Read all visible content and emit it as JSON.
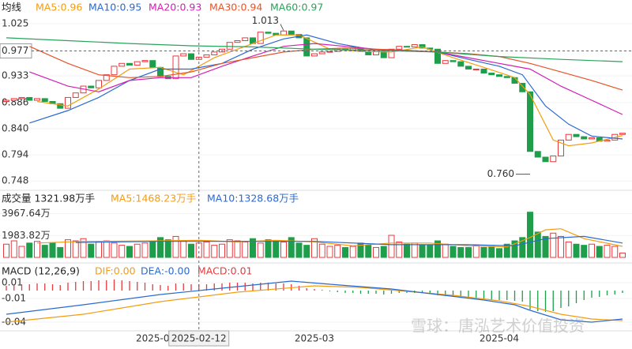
{
  "chart_data": [
    {
      "type": "candlestick",
      "title": "均线",
      "open": [
        0.888,
        0.89,
        0.893,
        0.895,
        0.89,
        0.893,
        0.888,
        0.884,
        0.876,
        0.895,
        0.903,
        0.915,
        0.912,
        0.925,
        0.935,
        0.95,
        0.955,
        0.952,
        0.958,
        0.96,
        0.948,
        0.932,
        0.928,
        0.968,
        0.972,
        0.962,
        0.966,
        0.97,
        0.975,
        0.98,
        0.992,
        0.995,
        1.0,
        0.99,
        1.01,
        1.008,
        1.005,
        1.012,
        1.006,
        1.0,
        0.968,
        0.972,
        0.975,
        0.976,
        0.98,
        0.978,
        0.982,
        0.976,
        0.97,
        0.978,
        0.965,
        0.98,
        0.985,
        0.984,
        0.988,
        0.982,
        0.98,
        0.955,
        0.96,
        0.958,
        0.95,
        0.945,
        0.945,
        0.938,
        0.935,
        0.932,
        0.93,
        0.92,
        0.905,
        0.8,
        0.79,
        0.782,
        0.792,
        0.82,
        0.83,
        0.826,
        0.822,
        0.824,
        0.818,
        0.82,
        0.83
      ],
      "close": [
        0.89,
        0.893,
        0.895,
        0.89,
        0.893,
        0.888,
        0.884,
        0.876,
        0.895,
        0.903,
        0.915,
        0.912,
        0.925,
        0.935,
        0.95,
        0.955,
        0.952,
        0.958,
        0.96,
        0.948,
        0.932,
        0.928,
        0.968,
        0.972,
        0.962,
        0.966,
        0.97,
        0.975,
        0.98,
        0.992,
        0.995,
        1.0,
        0.99,
        1.01,
        1.008,
        1.005,
        1.012,
        1.006,
        1.0,
        0.968,
        0.972,
        0.975,
        0.976,
        0.98,
        0.978,
        0.982,
        0.976,
        0.97,
        0.978,
        0.965,
        0.98,
        0.985,
        0.984,
        0.988,
        0.982,
        0.98,
        0.955,
        0.96,
        0.958,
        0.95,
        0.945,
        0.945,
        0.938,
        0.935,
        0.932,
        0.93,
        0.92,
        0.905,
        0.8,
        0.79,
        0.782,
        0.792,
        0.82,
        0.83,
        0.826,
        0.822,
        0.824,
        0.818,
        0.82,
        0.83,
        0.832
      ],
      "up_color": "#e8393c",
      "down_color": "#1e9e4a",
      "ylim": [
        0.733,
        1.036
      ],
      "yticks": [
        1.025,
        0.977,
        0.933,
        0.886,
        {
          "value": 0.84,
          "label": "0.840"
        },
        0.794,
        0.748
      ],
      "grid": true,
      "crosshair": {
        "x": 25,
        "y": 0.977
      },
      "lines": [
        {
          "name": "MA5:0.96",
          "color": "#f39c12",
          "x": [
            4,
            8,
            12,
            16,
            20,
            23,
            27,
            31,
            35,
            38,
            42,
            46,
            50,
            54,
            58,
            62,
            66,
            68,
            71,
            73,
            76,
            80
          ],
          "values": [
            0.888,
            0.88,
            0.91,
            0.945,
            0.948,
            0.935,
            0.965,
            0.985,
            1.005,
            1.005,
            0.98,
            0.976,
            0.975,
            0.984,
            0.965,
            0.948,
            0.93,
            0.9,
            0.82,
            0.81,
            0.815,
            0.828
          ]
        },
        {
          "name": "MA10:0.95",
          "color": "#2a6ad0",
          "x": [
            3,
            8,
            12,
            16,
            20,
            24,
            28,
            32,
            36,
            39,
            43,
            48,
            52,
            56,
            60,
            64,
            67,
            70,
            73,
            76,
            80
          ],
          "values": [
            0.85,
            0.872,
            0.895,
            0.925,
            0.945,
            0.945,
            0.955,
            0.98,
            0.998,
            1.005,
            0.99,
            0.978,
            0.977,
            0.975,
            0.962,
            0.95,
            0.935,
            0.88,
            0.848,
            0.827,
            0.822
          ]
        },
        {
          "name": "MA20:0.93",
          "color": "#d21fb4",
          "x": [
            3,
            8,
            12,
            16,
            20,
            24,
            28,
            32,
            36,
            40,
            44,
            48,
            52,
            56,
            60,
            64,
            68,
            72,
            76,
            80
          ],
          "values": [
            0.94,
            0.915,
            0.905,
            0.925,
            0.93,
            0.93,
            0.95,
            0.968,
            0.985,
            0.99,
            0.985,
            0.98,
            0.978,
            0.975,
            0.965,
            0.955,
            0.945,
            0.915,
            0.89,
            0.865
          ]
        },
        {
          "name": "MA30:0.94",
          "color": "#e6542a",
          "x": [
            3,
            8,
            12,
            16,
            20,
            24,
            28,
            32,
            36,
            40,
            44,
            48,
            52,
            56,
            60,
            64,
            68,
            72,
            76,
            80
          ],
          "values": [
            0.985,
            0.955,
            0.935,
            0.93,
            0.932,
            0.94,
            0.955,
            0.965,
            0.975,
            0.98,
            0.982,
            0.98,
            0.978,
            0.975,
            0.972,
            0.967,
            0.955,
            0.94,
            0.925,
            0.908
          ]
        },
        {
          "name": "MA60:0.97",
          "color": "#2aa35a",
          "x": [
            0,
            8,
            16,
            24,
            32,
            40,
            48,
            56,
            64,
            72,
            80
          ],
          "values": [
            1.0,
            0.995,
            0.99,
            0.986,
            0.984,
            0.98,
            0.978,
            0.975,
            0.967,
            0.962,
            0.958
          ]
        }
      ],
      "annotations": [
        {
          "text": "1.013",
          "x": 36,
          "y": 1.013
        },
        {
          "text": "0.760",
          "x": 68,
          "y": 0.76
        }
      ]
    },
    {
      "type": "volume",
      "title": "成交量 1321.98万手",
      "values": [
        1200,
        1500,
        1000,
        1300,
        1450,
        1100,
        1300,
        900,
        1600,
        1500,
        1700,
        1200,
        1400,
        1500,
        1300,
        1100,
        1000,
        1200,
        1300,
        1400,
        1800,
        1600,
        1900,
        1500,
        1200,
        1300,
        1400,
        1100,
        1200,
        1600,
        1500,
        1400,
        1700,
        1300,
        1600,
        1500,
        1400,
        1800,
        1300,
        1100,
        1700,
        1200,
        1000,
        1100,
        900,
        1000,
        1300,
        1100,
        900,
        1000,
        2000,
        1400,
        1200,
        1300,
        1100,
        1100,
        1500,
        1200,
        1000,
        900,
        900,
        1100,
        900,
        1000,
        800,
        1200,
        1500,
        1800,
        4100,
        2300,
        1900,
        2200,
        1900,
        1400,
        1200,
        1100,
        1200,
        1000,
        1100,
        1000,
        400
      ],
      "ylim": [
        0,
        4580
      ],
      "yticks": [
        {
          "value": 3967.64,
          "label": "3967.64万"
        },
        {
          "value": 1983.82,
          "label": "1983.82万"
        }
      ],
      "grid": true,
      "lines": [
        {
          "name": "MA5:1468.23万手",
          "color": "#f39c12",
          "x": [
            4,
            10,
            20,
            25,
            30,
            35,
            40,
            45,
            50,
            55,
            60,
            65,
            68,
            70,
            72,
            75,
            80
          ],
          "values": [
            1300,
            1450,
            1500,
            1550,
            1400,
            1550,
            1400,
            1050,
            1300,
            1300,
            1050,
            950,
            1800,
            2500,
            2600,
            1700,
            1000
          ]
        },
        {
          "name": "MA10:1328.68万手",
          "color": "#2a6ad0",
          "x": [
            9,
            20,
            30,
            40,
            50,
            60,
            66,
            70,
            75,
            80
          ],
          "values": [
            1350,
            1450,
            1450,
            1450,
            1150,
            1150,
            1050,
            1700,
            1900,
            1300
          ]
        }
      ]
    },
    {
      "type": "macd",
      "title": "MACD (12,26,9)",
      "values": [
        0.006,
        0.007,
        0.008,
        0.008,
        0.009,
        0.009,
        0.008,
        0.007,
        0.01,
        0.011,
        0.012,
        0.012,
        0.013,
        0.013,
        0.014,
        0.013,
        0.012,
        0.011,
        0.01,
        0.008,
        0.007,
        0.006,
        0.009,
        0.009,
        0.008,
        0.008,
        0.008,
        0.009,
        0.009,
        0.01,
        0.01,
        0.01,
        0.009,
        0.01,
        0.01,
        0.009,
        0.009,
        0.008,
        0.006,
        0.003,
        0.002,
        0.001,
        -0.001,
        -0.002,
        -0.003,
        -0.003,
        -0.004,
        -0.004,
        -0.004,
        -0.005,
        -0.004,
        -0.003,
        -0.003,
        -0.003,
        -0.003,
        -0.004,
        -0.006,
        -0.007,
        -0.008,
        -0.009,
        -0.01,
        -0.011,
        -0.011,
        -0.012,
        -0.012,
        -0.012,
        -0.013,
        -0.014,
        -0.024,
        -0.026,
        -0.027,
        -0.026,
        -0.022,
        -0.02,
        -0.016,
        -0.012,
        -0.009,
        -0.008,
        -0.006,
        -0.005,
        -0.003
      ],
      "summary": "MACD:0.01",
      "summary_color": "#e8393c",
      "up_color": "#e8393c",
      "down_color": "#1e9e4a",
      "ylim": [
        -0.052,
        0.018
      ],
      "yticks": [
        0.01,
        -0.01,
        -0.04
      ],
      "grid": true,
      "lines": [
        {
          "name": "DIF:0.00",
          "color": "#f39c12",
          "x": [
            0,
            10,
            20,
            30,
            40,
            46,
            52,
            58,
            64,
            68,
            72,
            76,
            80
          ],
          "values": [
            -0.04,
            -0.03,
            -0.014,
            -0.002,
            0.006,
            0.004,
            -0.001,
            -0.006,
            -0.013,
            -0.02,
            -0.03,
            -0.036,
            -0.038
          ]
        },
        {
          "name": "DEA:-0.00",
          "color": "#2a6ad0",
          "x": [
            0,
            10,
            20,
            30,
            37,
            42,
            50,
            56,
            62,
            66,
            68,
            72,
            76,
            80
          ],
          "values": [
            -0.03,
            -0.018,
            -0.005,
            0.005,
            0.012,
            0.008,
            0.002,
            -0.005,
            -0.012,
            -0.018,
            -0.025,
            -0.037,
            -0.04,
            -0.036
          ]
        }
      ],
      "xticks": [
        {
          "value": 19,
          "label": "2025-0"
        },
        {
          "value": 25,
          "label": "2025-02-12"
        },
        {
          "value": 40,
          "label": "2025-03"
        },
        {
          "value": 64,
          "label": "2025-04"
        }
      ],
      "watermark": "雪球：唐泓艺术价值投资"
    }
  ]
}
